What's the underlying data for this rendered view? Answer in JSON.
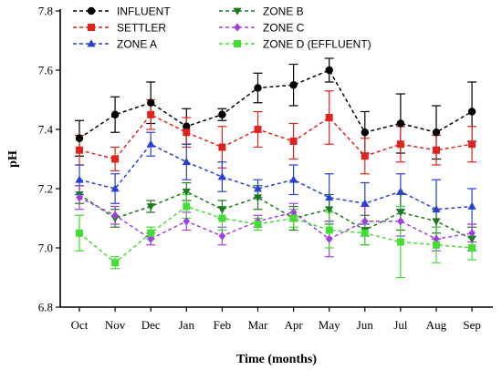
{
  "chart_data": {
    "type": "line",
    "xlabel": "Time (months)",
    "ylabel": "pH",
    "ylim": [
      6.8,
      7.8
    ],
    "yticks": [
      6.8,
      7.0,
      7.2,
      7.4,
      7.6,
      7.8
    ],
    "categories": [
      "Oct",
      "Nov",
      "Dec",
      "Jan",
      "Feb",
      "Mar",
      "Apr",
      "May",
      "Jun",
      "Jul",
      "Aug",
      "Sep"
    ],
    "grid": false,
    "legend_position": "top-left",
    "series": [
      {
        "name": "INFLUENT",
        "color": "#000000",
        "marker": "circle",
        "values": [
          7.37,
          7.45,
          7.49,
          7.41,
          7.45,
          7.54,
          7.55,
          7.6,
          7.39,
          7.42,
          7.39,
          7.46
        ],
        "errors": [
          0.06,
          0.06,
          0.07,
          0.06,
          0.02,
          0.05,
          0.07,
          0.04,
          0.07,
          0.1,
          0.09,
          0.1
        ]
      },
      {
        "name": "SETTLER",
        "color": "#e0231f",
        "marker": "square",
        "values": [
          7.33,
          7.3,
          7.45,
          7.39,
          7.34,
          7.4,
          7.36,
          7.44,
          7.31,
          7.35,
          7.33,
          7.35
        ],
        "errors": [
          0.05,
          0.04,
          0.05,
          0.05,
          0.07,
          0.06,
          0.06,
          0.09,
          0.06,
          0.06,
          0.05,
          0.06
        ]
      },
      {
        "name": "ZONE A",
        "color": "#2a3fd4",
        "marker": "triangle-up",
        "values": [
          7.23,
          7.2,
          7.35,
          7.29,
          7.24,
          7.2,
          7.23,
          7.17,
          7.15,
          7.19,
          7.13,
          7.14
        ],
        "errors": [
          0.05,
          0.05,
          0.04,
          0.06,
          0.05,
          0.03,
          0.05,
          0.08,
          0.07,
          0.06,
          0.1,
          0.06
        ]
      },
      {
        "name": "ZONE B",
        "color": "#1e7a1e",
        "marker": "triangle-down",
        "values": [
          7.18,
          7.1,
          7.14,
          7.19,
          7.13,
          7.17,
          7.1,
          7.13,
          7.06,
          7.12,
          7.09,
          7.03
        ],
        "errors": [
          0.03,
          0.03,
          0.02,
          0.03,
          0.03,
          0.04,
          0.04,
          0.05,
          0.05,
          0.06,
          0.04,
          0.04
        ]
      },
      {
        "name": "ZONE C",
        "color": "#a040e0",
        "marker": "diamond",
        "values": [
          7.17,
          7.11,
          7.03,
          7.09,
          7.04,
          7.09,
          7.12,
          7.03,
          7.09,
          7.09,
          7.03,
          7.05
        ],
        "errors": [
          0.04,
          0.03,
          0.02,
          0.03,
          0.03,
          0.02,
          0.03,
          0.06,
          0.05,
          0.05,
          0.04,
          0.03
        ]
      },
      {
        "name": "ZONE D (EFFLUENT)",
        "color": "#44dd33",
        "marker": "square",
        "values": [
          7.05,
          6.95,
          7.05,
          7.14,
          7.1,
          7.08,
          7.1,
          7.06,
          7.05,
          7.02,
          7.01,
          7.0
        ],
        "errors": [
          0.06,
          0.02,
          0.02,
          0.04,
          0.04,
          0.02,
          0.03,
          0.06,
          0.04,
          0.12,
          0.06,
          0.04
        ]
      }
    ]
  }
}
